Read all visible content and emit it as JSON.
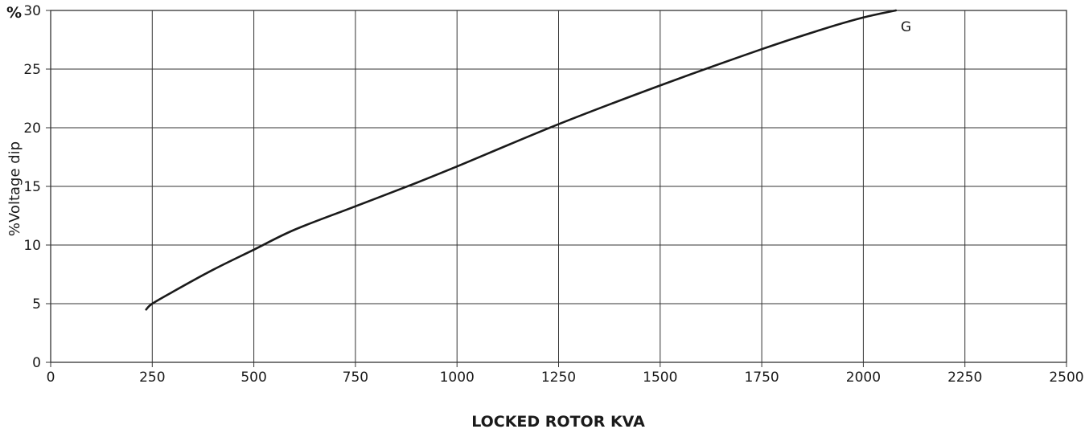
{
  "chart_data": {
    "type": "line",
    "title": "",
    "xlabel": "LOCKED ROTOR KVA",
    "ylabel": "%Voltage dip",
    "y_unit_label": "%",
    "xlim": [
      0,
      2500
    ],
    "ylim": [
      0,
      30
    ],
    "x_ticks": [
      0,
      250,
      500,
      750,
      1000,
      1250,
      1500,
      1750,
      2000,
      2250,
      2500
    ],
    "y_ticks": [
      0,
      5,
      10,
      15,
      20,
      25,
      30
    ],
    "x_tick_labels": [
      "0",
      "250",
      "500",
      "750",
      "1000",
      "1250",
      "1500",
      "1750",
      "2000",
      "2250",
      "2500"
    ],
    "y_tick_labels": [
      "0",
      "5",
      "10",
      "15",
      "20",
      "25",
      "30"
    ],
    "grid": true,
    "series": [
      {
        "name": "G",
        "color": "#1a1a1a",
        "x": [
          235,
          250,
          300,
          400,
          500,
          600,
          750,
          900,
          1000,
          1250,
          1500,
          1750,
          1900,
          2000,
          2080
        ],
        "y": [
          4.5,
          5.0,
          6.0,
          7.9,
          9.6,
          11.3,
          13.3,
          15.3,
          16.7,
          20.3,
          23.6,
          26.7,
          28.4,
          29.4,
          30.0
        ]
      }
    ]
  }
}
